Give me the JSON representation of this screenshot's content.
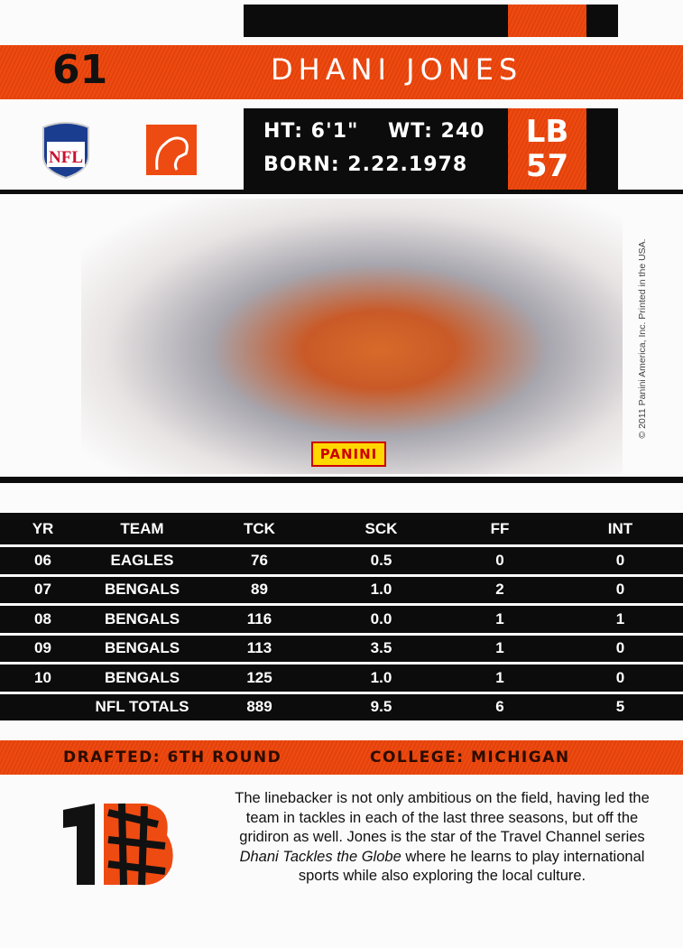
{
  "card": {
    "number": "61",
    "player_name": "DHANI JONES",
    "height": "HT: 6'1\"",
    "weight": "WT: 240",
    "born": "BORN: 2.22.1978",
    "position": "LB",
    "jersey": "57",
    "brand_logo": "PANINI",
    "copyright": "© 2011 Panini America, Inc. Printed in the USA.",
    "league_logo": "NFL",
    "team_logo": "Bengals B"
  },
  "colors": {
    "orange": "#ee4b12",
    "black": "#0c0c0c"
  },
  "stats": {
    "headers": [
      "YR",
      "TEAM",
      "TCK",
      "SCK",
      "FF",
      "INT"
    ],
    "rows": [
      [
        "06",
        "EAGLES",
        "76",
        "0.5",
        "0",
        "0"
      ],
      [
        "07",
        "BENGALS",
        "89",
        "1.0",
        "2",
        "0"
      ],
      [
        "08",
        "BENGALS",
        "116",
        "0.0",
        "1",
        "1"
      ],
      [
        "09",
        "BENGALS",
        "113",
        "3.5",
        "1",
        "0"
      ],
      [
        "10",
        "BENGALS",
        "125",
        "1.0",
        "1",
        "0"
      ],
      [
        "",
        "NFL TOTALS",
        "889",
        "9.5",
        "6",
        "5"
      ]
    ]
  },
  "drafted": "DRAFTED: 6TH ROUND",
  "college": "COLLEGE: MICHIGAN",
  "bio": {
    "text1": "The linebacker is not only ambitious on the field, having led the team in tackles in each of the last three seasons, but off the gridiron as well. Jones is the star of the Travel Channel series ",
    "show": "Dhani Tackles the Globe",
    "text2": " where he learns to play international sports while also exploring the local culture."
  }
}
